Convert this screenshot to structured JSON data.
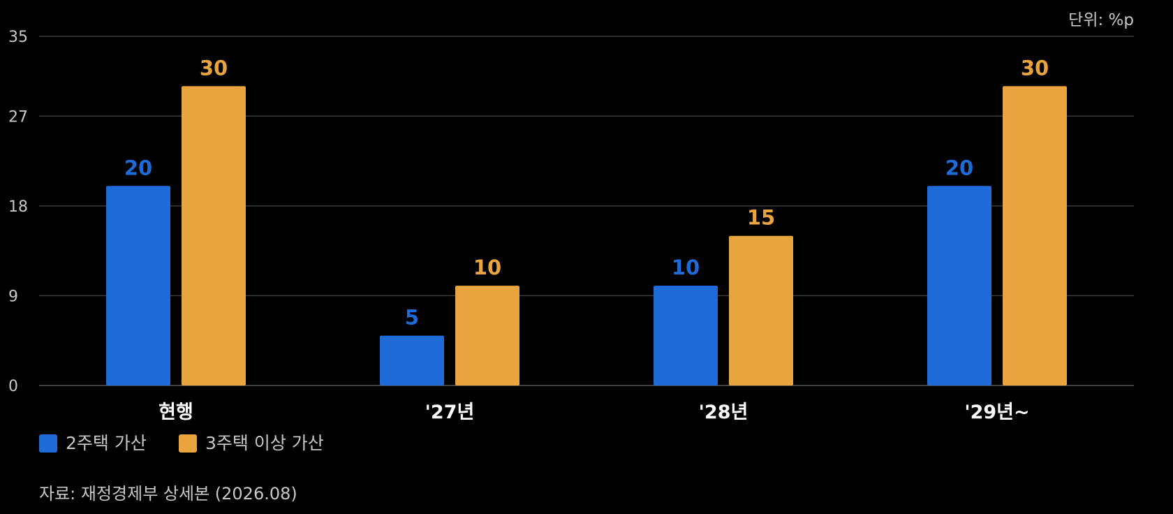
{
  "unit_label": "단위: %p",
  "source": "자료: 재정경제부 상세본 (2026.08)",
  "colors": {
    "series_1": "#1f6bd7",
    "series_2": "#e8a43f",
    "background": "#000000",
    "grid": "#3a3a3a"
  },
  "chart_data": {
    "type": "bar",
    "categories": [
      "현행",
      "'27년",
      "'28년",
      "'29년~"
    ],
    "series": [
      {
        "name": "2주택 가산",
        "values": [
          20,
          5,
          10,
          20
        ]
      },
      {
        "name": "3주택 이상 가산",
        "values": [
          30,
          10,
          15,
          30
        ]
      }
    ],
    "ylim": [
      0,
      35
    ],
    "yticks": [
      0,
      9,
      18,
      27,
      35
    ],
    "grid": true,
    "legend_position": "bottom-left",
    "data_labels": true
  }
}
